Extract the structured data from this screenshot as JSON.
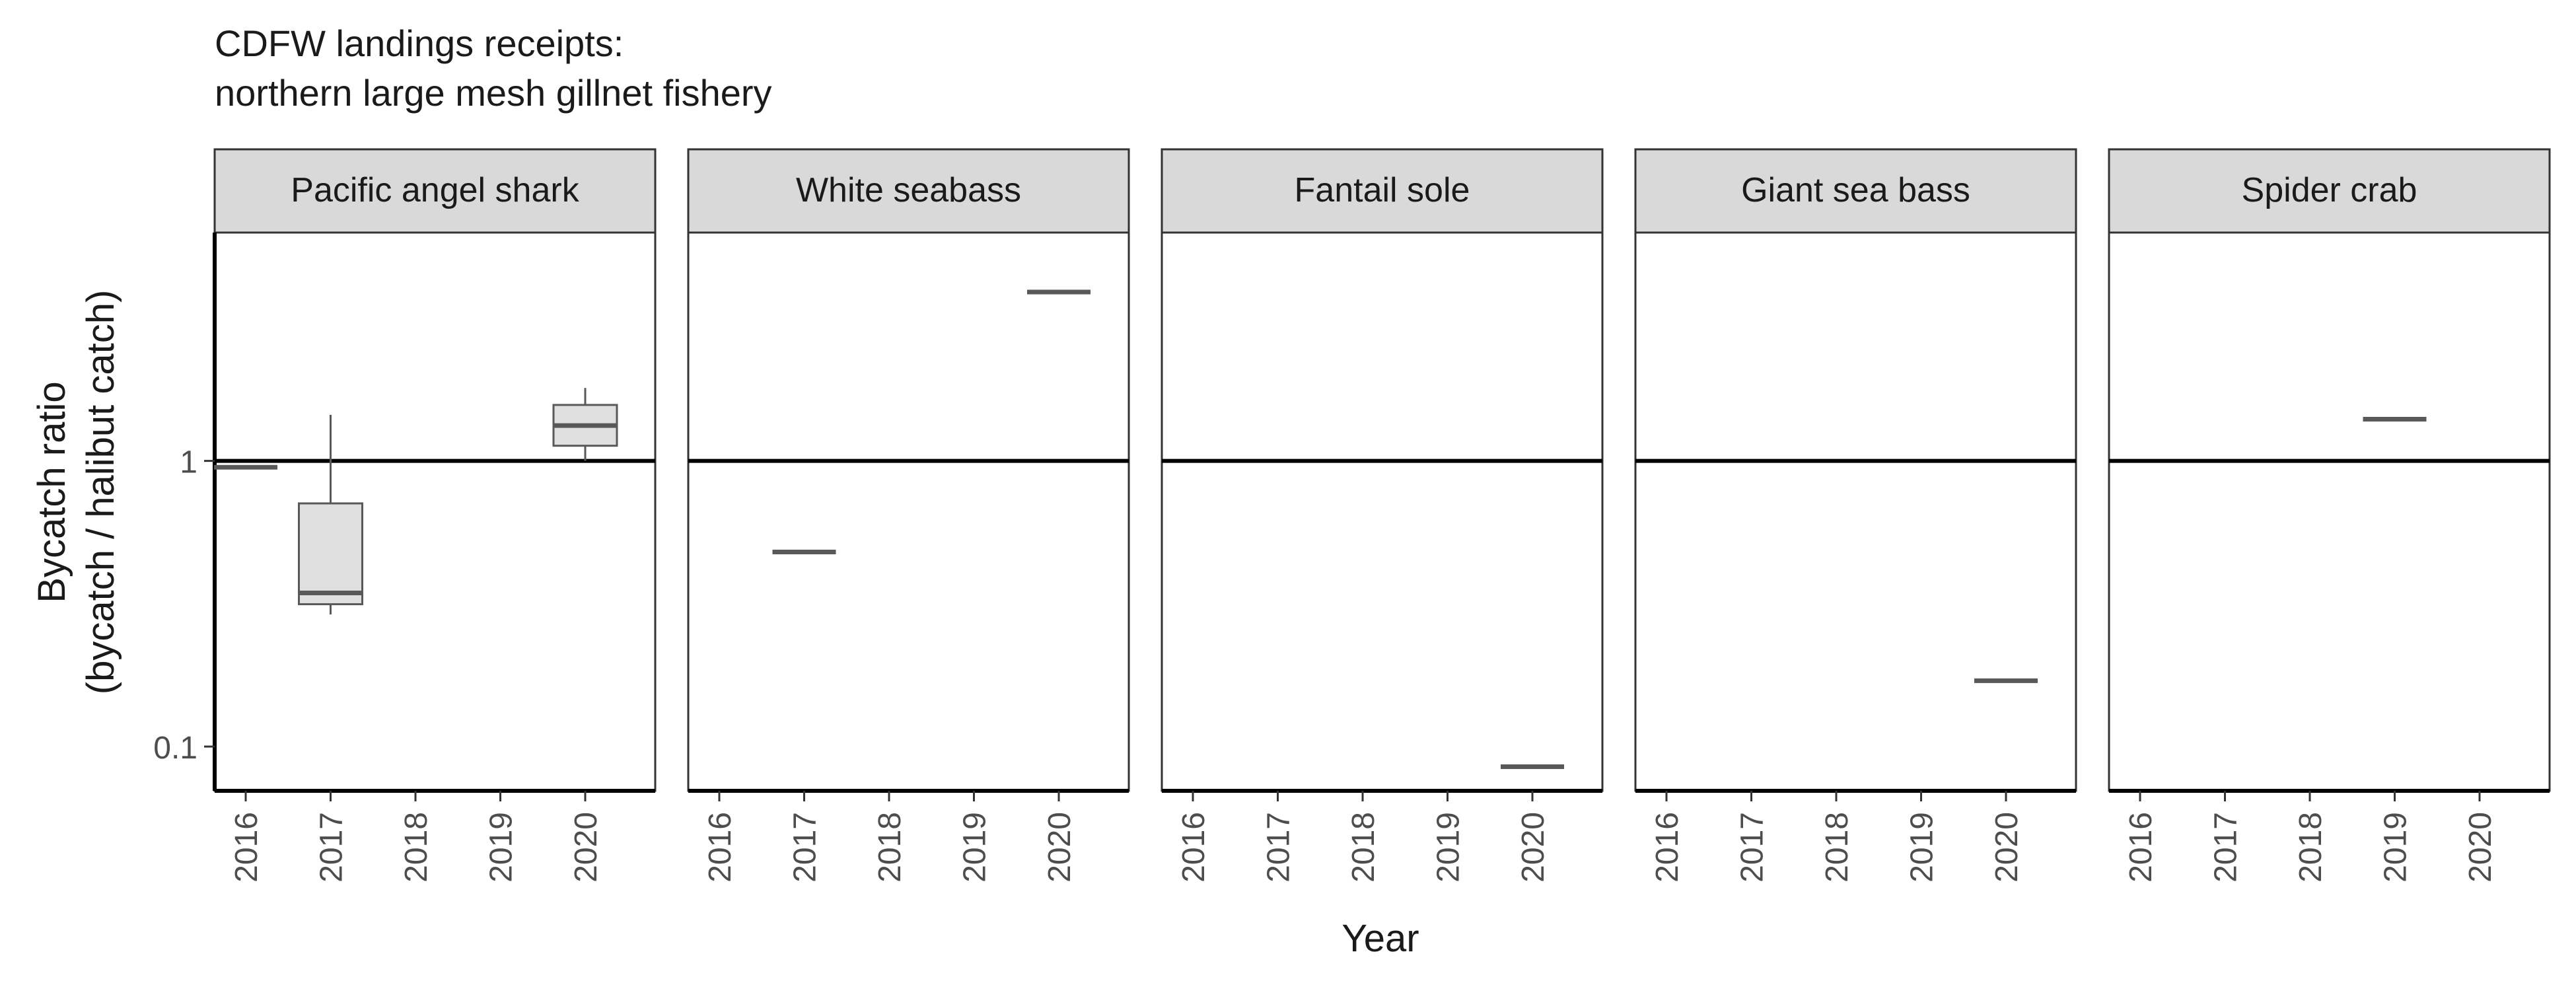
{
  "title": "CDFW landings receipts:",
  "subtitle": "northern large mesh gillnet fishery",
  "chart_data": {
    "type": "boxplot",
    "x_label": "Year",
    "y_label": "Bycatch ratio",
    "y_label_2": "(bycatch / halibut catch)",
    "y_scale": "log10",
    "y_range": [
      0.07,
      6.3
    ],
    "y_ticks": [
      {
        "value": 0.1,
        "label": "0.1"
      },
      {
        "value": 1,
        "label": "1"
      }
    ],
    "x_categories": [
      "2016",
      "2017",
      "2018",
      "2019",
      "2020"
    ],
    "reference_line": 1,
    "colors": {
      "box_fill": "#e0e0e0",
      "box_line": "#595959",
      "strip_fill": "#d9d9d9",
      "reference": "#000000"
    },
    "panels": [
      {
        "name": "Pacific angel shark",
        "boxes": [
          {
            "x": "2016",
            "low": 0.95,
            "q1": 0.95,
            "median": 0.95,
            "q3": 0.95,
            "high": 0.95
          },
          {
            "x": "2017",
            "low": 0.29,
            "q1": 0.315,
            "median": 0.345,
            "q3": 0.71,
            "high": 1.45
          },
          {
            "x": "2020",
            "low": 1.0,
            "q1": 1.13,
            "median": 1.33,
            "q3": 1.57,
            "high": 1.8
          }
        ]
      },
      {
        "name": "White seabass",
        "boxes": [
          {
            "x": "2017",
            "low": 0.48,
            "q1": 0.48,
            "median": 0.48,
            "q3": 0.48,
            "high": 0.48
          },
          {
            "x": "2020",
            "low": 3.9,
            "q1": 3.9,
            "median": 3.9,
            "q3": 3.9,
            "high": 3.9
          }
        ]
      },
      {
        "name": "Fantail sole",
        "boxes": [
          {
            "x": "2020",
            "low": 0.085,
            "q1": 0.085,
            "median": 0.085,
            "q3": 0.085,
            "high": 0.085
          }
        ]
      },
      {
        "name": "Giant sea bass",
        "boxes": [
          {
            "x": "2020",
            "low": 0.17,
            "q1": 0.17,
            "median": 0.17,
            "q3": 0.17,
            "high": 0.17
          }
        ]
      },
      {
        "name": "Spider crab",
        "boxes": [
          {
            "x": "2019",
            "low": 1.4,
            "q1": 1.4,
            "median": 1.4,
            "q3": 1.4,
            "high": 1.4
          }
        ]
      }
    ]
  }
}
